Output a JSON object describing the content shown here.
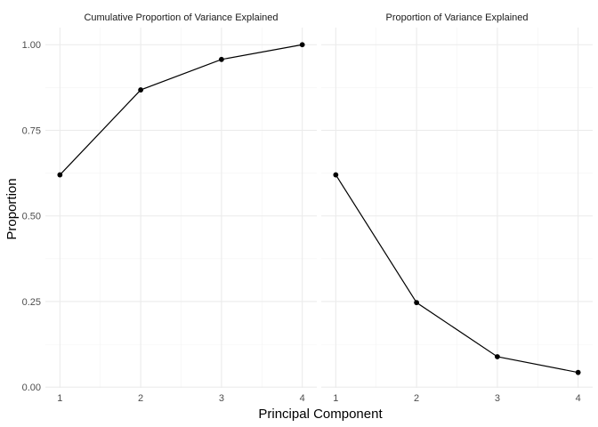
{
  "chart_data": {
    "type": "line",
    "ylabel": "Proportion",
    "xlabel": "Principal Component",
    "ylim": [
      0,
      1
    ],
    "yticks": [
      "0.00",
      "0.25",
      "0.50",
      "0.75",
      "1.00"
    ],
    "ytick_values": [
      0,
      0.25,
      0.5,
      0.75,
      1
    ],
    "xticks": [
      "1",
      "2",
      "3",
      "4"
    ],
    "xtick_values": [
      1,
      2,
      3,
      4
    ],
    "grid": true,
    "line_color": "#000000",
    "panels": [
      {
        "title": "Cumulative Proportion of Variance Explained",
        "x": [
          1,
          2,
          3,
          4
        ],
        "y": [
          0.62,
          0.868,
          0.957,
          1.0
        ]
      },
      {
        "title": "Proportion of Variance Explained",
        "x": [
          1,
          2,
          3,
          4
        ],
        "y": [
          0.62,
          0.247,
          0.089,
          0.043
        ]
      }
    ]
  }
}
